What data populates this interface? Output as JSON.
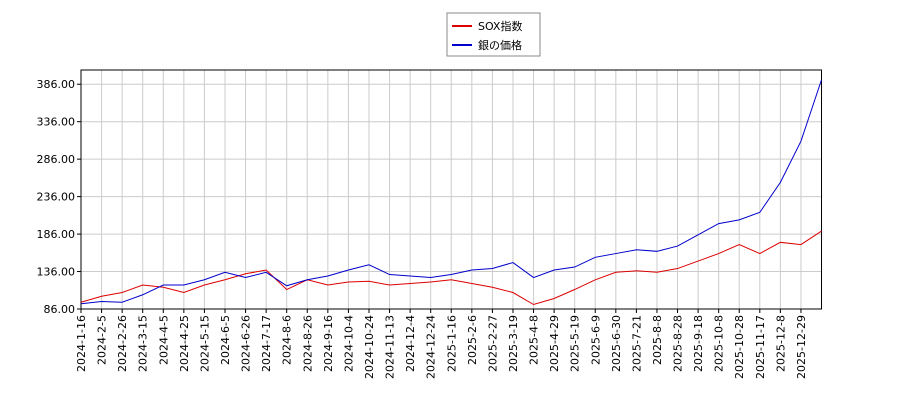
{
  "chart_data": {
    "type": "line",
    "categories": [
      "2024-1-16",
      "2024-2-5",
      "2024-2-26",
      "2024-3-15",
      "2024-4-5",
      "2024-4-25",
      "2024-5-15",
      "2024-6-5",
      "2024-6-26",
      "2024-7-17",
      "2024-8-6",
      "2024-8-26",
      "2024-9-16",
      "2024-10-4",
      "2024-10-24",
      "2024-11-13",
      "2024-12-4",
      "2024-12-24",
      "2025-1-16",
      "2025-2-6",
      "2025-2-27",
      "2025-3-19",
      "2025-4-8",
      "2025-4-29",
      "2025-5-19",
      "2025-6-9",
      "2025-6-30",
      "2025-7-21",
      "2025-8-8",
      "2025-8-28",
      "2025-9-18",
      "2025-10-8",
      "2025-10-28",
      "2025-11-17",
      "2025-12-8",
      "2025-12-29",
      null
    ],
    "series": [
      {
        "name": "SOX指数",
        "color": "#dd0000",
        "values": [
          95,
          103,
          108,
          118,
          115,
          108,
          118,
          125,
          133,
          138,
          112,
          125,
          118,
          122,
          123,
          118,
          120,
          122,
          125,
          120,
          115,
          108,
          92,
          100,
          112,
          125,
          135,
          137,
          135,
          140,
          150,
          160,
          172,
          160,
          175,
          172,
          190
        ]
      },
      {
        "name": "銀の価格",
        "color": "#0000cc",
        "values": [
          93,
          96,
          95,
          105,
          118,
          118,
          125,
          135,
          128,
          135,
          117,
          125,
          130,
          138,
          145,
          132,
          130,
          128,
          132,
          138,
          140,
          148,
          128,
          138,
          142,
          155,
          160,
          165,
          163,
          170,
          185,
          200,
          205,
          215,
          255,
          310,
          392
        ]
      }
    ],
    "ylim": [
      86,
      405
    ],
    "yticks": [
      {
        "value": 86,
        "label": "86.00"
      },
      {
        "value": 136,
        "label": "136.00"
      },
      {
        "value": 186,
        "label": "186.00"
      },
      {
        "value": 236,
        "label": "236.00"
      },
      {
        "value": 286,
        "label": "286.00"
      },
      {
        "value": 336,
        "label": "336.00"
      },
      {
        "value": 386,
        "label": "386.00"
      }
    ],
    "grid": true
  }
}
